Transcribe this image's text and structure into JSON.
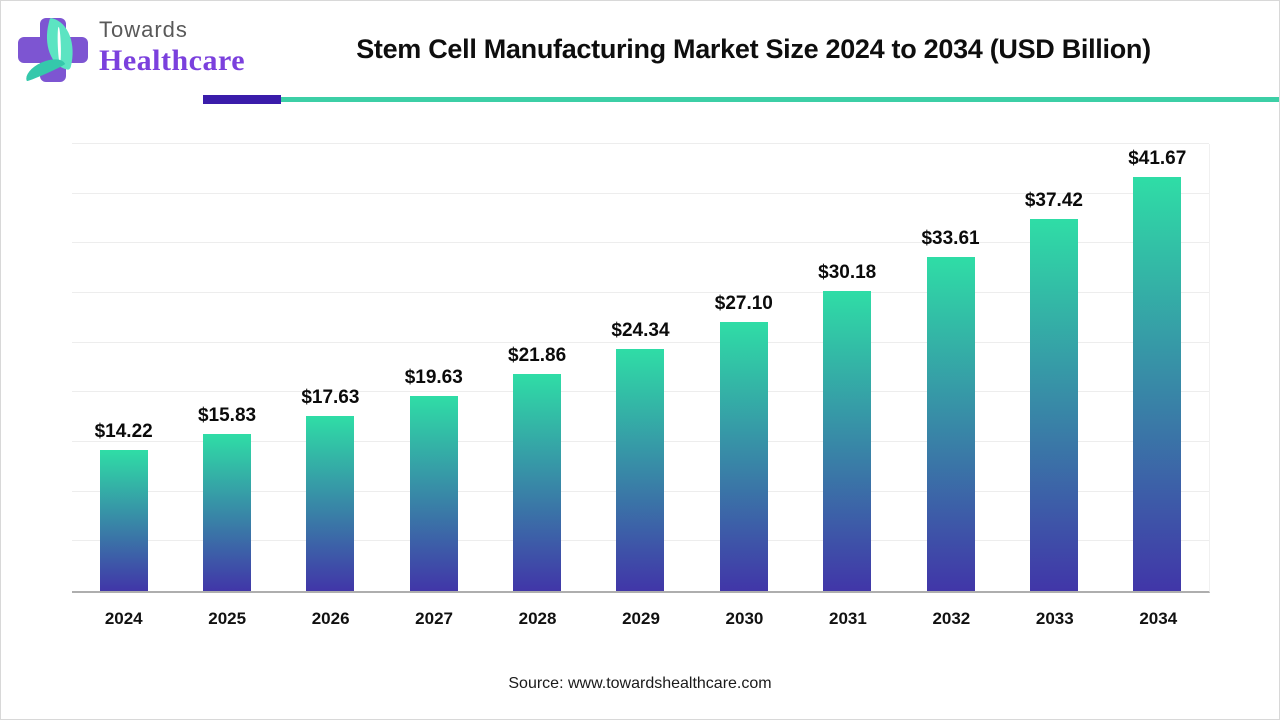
{
  "header": {
    "logo": {
      "line1": "Towards",
      "line2": "Healthcare"
    },
    "title": "Stem Cell Manufacturing Market Size 2024 to 2034 (USD Billion)"
  },
  "chart_data": {
    "type": "bar",
    "title": "Stem Cell Manufacturing Market Size 2024 to 2034 (USD Billion)",
    "categories": [
      "2024",
      "2025",
      "2026",
      "2027",
      "2028",
      "2029",
      "2030",
      "2031",
      "2032",
      "2033",
      "2034"
    ],
    "values": [
      14.22,
      15.83,
      17.63,
      19.63,
      21.86,
      24.34,
      27.1,
      30.18,
      33.61,
      37.42,
      41.67
    ],
    "labels": [
      "$14.22",
      "$15.83",
      "$17.63",
      "$19.63",
      "$21.86",
      "$24.34",
      "$27.10",
      "$30.18",
      "$33.61",
      "$37.42",
      "$41.67"
    ],
    "xlabel": "",
    "ylabel": "",
    "ylim": [
      0,
      45
    ],
    "gridline_step": 5,
    "grid": true,
    "legend": "none",
    "y_axis_tick_labels_visible": false,
    "bar_gradient_top": "#2fdda6",
    "bar_gradient_bottom": "#4136a8"
  },
  "colors": {
    "accent_teal": "#3ccfa6",
    "accent_purple": "#3a1caa",
    "axis_line": "#aeaeae",
    "gridline": "#ededed",
    "logo_cross": "#7d55d2",
    "logo_leaf": "#5ce4c2",
    "logo_text_gray": "#595959",
    "logo_text_purple": "#7b40dd"
  },
  "footer": {
    "source": "Source: www.towardshealthcare.com"
  }
}
